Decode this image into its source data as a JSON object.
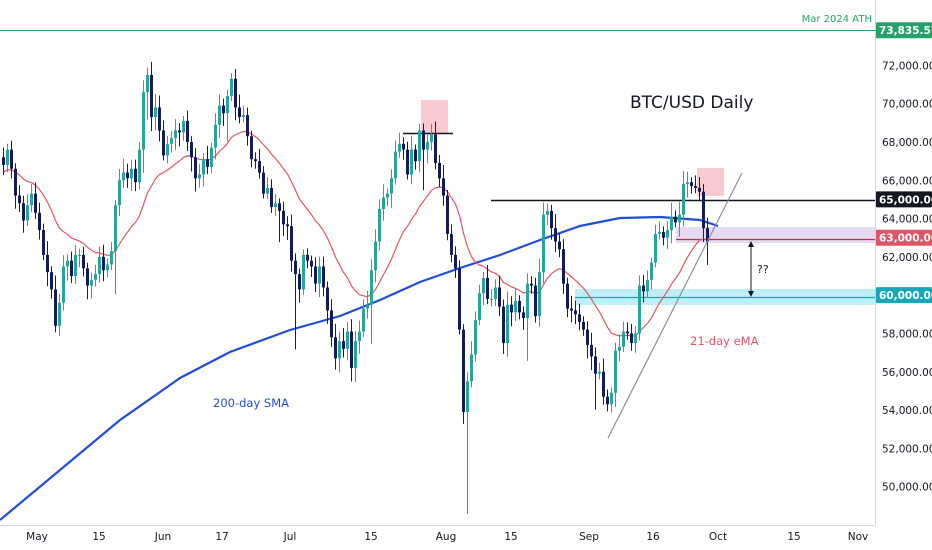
{
  "chart_data": {
    "type": "candlestick",
    "title": "BTC/USD Daily",
    "colors": {
      "up": "#26a69a",
      "down": "#131a5e",
      "ema": "#e05565",
      "sma": "#1e4fd6",
      "ath": "#26a269",
      "support": "#19c6d6",
      "resistance_band": "#b494d6",
      "red_box": "#f5a6b0"
    },
    "y_axis": {
      "ylim": [
        48700,
        74900
      ],
      "ticks": [
        "50,000.00",
        "52,000.00",
        "54,000.00",
        "56,000.00",
        "58,000.00",
        "60,000.00",
        "62,000.00",
        "64,000.00",
        "66,000.00",
        "68,000.00",
        "70,000.00",
        "72,000.00"
      ]
    },
    "x_axis": {
      "ticks": [
        "May",
        "15",
        "Jun",
        "17",
        "Jul",
        "15",
        "Aug",
        "15",
        "Sep",
        "16",
        "Oct",
        "15",
        "Nov"
      ]
    },
    "price_tags": [
      {
        "label": "73,835.57",
        "color": "#26a269"
      },
      {
        "label": "65,000.00",
        "color": "#131722"
      },
      {
        "label": "63,000.00",
        "color": "#e05565"
      },
      {
        "label": "60,000.00",
        "color": "#19a7b8"
      }
    ],
    "annotations": {
      "ath_label": "Mar 2024 ATH",
      "sma_label": "200-day SMA",
      "ema_label": "21-day eMA",
      "question": "??"
    },
    "close_path": [
      66800,
      67600,
      66600,
      65200,
      64800,
      63900,
      64700,
      65300,
      64300,
      63400,
      62100,
      61200,
      60300,
      58400,
      59600,
      61500,
      61800,
      61000,
      62100,
      62100,
      61400,
      60500,
      60800,
      61100,
      62000,
      61300,
      61600,
      62300,
      64700,
      66000,
      66400,
      66100,
      66600,
      65900,
      67600,
      70600,
      71500,
      69300,
      69800,
      68600,
      67300,
      67900,
      68200,
      68600,
      68500,
      69100,
      68000,
      67200,
      66100,
      66300,
      67100,
      66700,
      67700,
      68900,
      69900,
      69500,
      70400,
      71300,
      69800,
      69300,
      69400,
      68300,
      67100,
      67000,
      66400,
      65300,
      65600,
      64600,
      64800,
      64400,
      63700,
      63600,
      61800,
      61100,
      60300,
      62100,
      61800,
      61500,
      60600,
      61500,
      60400,
      59200,
      57800,
      56700,
      57600,
      57200,
      58100,
      56200,
      57600,
      58100,
      59300,
      59500,
      61300,
      62800,
      64500,
      65100,
      65300,
      66100,
      67500,
      67900,
      67600,
      66300,
      67600,
      67000,
      68600,
      67600,
      68000,
      68400,
      66900,
      66100,
      65200,
      63200,
      62100,
      61400,
      58200,
      53900,
      55500,
      56900,
      58700,
      60100,
      60900,
      59800,
      59800,
      60400,
      59400,
      57500,
      59500,
      59100,
      59700,
      59100,
      58800,
      60600,
      60500,
      58900,
      61200,
      64200,
      64400,
      63500,
      62800,
      62400,
      60600,
      59300,
      59200,
      59000,
      58600,
      58200,
      57400,
      56800,
      55900,
      56000,
      54700,
      54300,
      54900,
      57100,
      57300,
      58100,
      58000,
      57500,
      58000,
      60500,
      60200,
      60800,
      61700,
      63200,
      63300,
      63000,
      63400,
      64100,
      63800,
      64200,
      65800,
      65900,
      65700,
      65600,
      65400,
      63500,
      62800
    ]
  }
}
